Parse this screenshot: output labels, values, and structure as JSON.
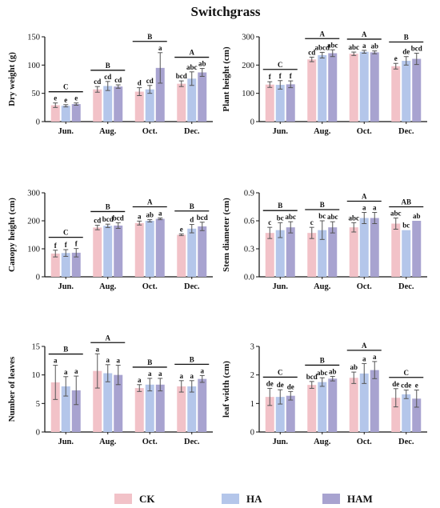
{
  "title": "Switchgrass",
  "legend": [
    {
      "name": "CK",
      "color": "#f2c2c8"
    },
    {
      "name": "HA",
      "color": "#b4c6ea"
    },
    {
      "name": "HAM",
      "color": "#a8a3d0"
    }
  ],
  "chart_data": [
    {
      "type": "bar",
      "ylabel": "Dry weight (g)",
      "categories": [
        "Jun.",
        "Aug.",
        "Oct.",
        "Dec."
      ],
      "ylim": [
        0,
        150
      ],
      "yticks": [
        0,
        50,
        100,
        150
      ],
      "series": [
        {
          "name": "CK",
          "values": [
            29,
            57,
            53,
            67
          ],
          "errors": [
            4,
            5,
            7,
            5
          ]
        },
        {
          "name": "HA",
          "values": [
            28,
            63,
            57,
            76
          ],
          "errors": [
            2,
            8,
            7,
            12
          ]
        },
        {
          "name": "HAM",
          "values": [
            31,
            62,
            95,
            87
          ],
          "errors": [
            2,
            3,
            27,
            7
          ]
        }
      ],
      "letters": [
        [
          "e",
          "e",
          "e"
        ],
        [
          "cd",
          "cd",
          "cd"
        ],
        [
          "d",
          "cd",
          "a"
        ],
        [
          "bcd",
          "abc",
          "ab"
        ]
      ],
      "group_letters": [
        "C",
        "B",
        "B",
        "A"
      ]
    },
    {
      "type": "bar",
      "ylabel": "Plant height (cm)",
      "categories": [
        "Jun.",
        "Aug.",
        "Oct.",
        "Dec."
      ],
      "ylim": [
        0,
        300
      ],
      "yticks": [
        0,
        100,
        200,
        300
      ],
      "series": [
        {
          "name": "CK",
          "values": [
            131,
            220,
            240,
            196
          ],
          "errors": [
            10,
            8,
            6,
            10
          ]
        },
        {
          "name": "HA",
          "values": [
            130,
            235,
            247,
            215
          ],
          "errors": [
            15,
            10,
            5,
            15
          ]
        },
        {
          "name": "HAM",
          "values": [
            132,
            242,
            245,
            222
          ],
          "errors": [
            12,
            12,
            5,
            20
          ]
        }
      ],
      "letters": [
        [
          "f",
          "f",
          "f"
        ],
        [
          "cd",
          "abcd",
          "abc"
        ],
        [
          "abc",
          "a",
          "ab"
        ],
        [
          "e",
          "de",
          "bcd"
        ]
      ],
      "group_letters": [
        "C",
        "A",
        "A",
        "B"
      ]
    },
    {
      "type": "bar",
      "ylabel": "Canopy height (cm)",
      "categories": [
        "Jun.",
        "Aug.",
        "Oct.",
        "Dec."
      ],
      "ylim": [
        0,
        300
      ],
      "yticks": [
        0,
        100,
        200,
        300
      ],
      "series": [
        {
          "name": "CK",
          "values": [
            83,
            176,
            192,
            150
          ],
          "errors": [
            12,
            8,
            7,
            3
          ]
        },
        {
          "name": "HA",
          "values": [
            85,
            182,
            200,
            172
          ],
          "errors": [
            12,
            6,
            4,
            15
          ]
        },
        {
          "name": "HAM",
          "values": [
            86,
            183,
            207,
            180
          ],
          "errors": [
            15,
            10,
            3,
            15
          ]
        }
      ],
      "letters": [
        [
          "f",
          "f",
          "f"
        ],
        [
          "cd",
          "bcd",
          "bcd"
        ],
        [
          "a",
          "ab",
          "a"
        ],
        [
          "e",
          "d",
          "bcd"
        ]
      ],
      "group_letters": [
        "C",
        "B",
        "A",
        "B"
      ]
    },
    {
      "type": "bar",
      "ylabel": "Stem diameter (cm)",
      "categories": [
        "Jun.",
        "Aug.",
        "Oct.",
        "Dec."
      ],
      "ylim": [
        0,
        0.9
      ],
      "yticks": [
        "0.0",
        "0.3",
        "0.6",
        "0.9"
      ],
      "series": [
        {
          "name": "CK",
          "values": [
            0.47,
            0.47,
            0.53,
            0.57
          ],
          "errors": [
            0.06,
            0.06,
            0.05,
            0.06
          ]
        },
        {
          "name": "HA",
          "values": [
            0.5,
            0.5,
            0.63,
            0.5
          ],
          "errors": [
            0.08,
            0.1,
            0.06,
            0.0
          ]
        },
        {
          "name": "HAM",
          "values": [
            0.53,
            0.53,
            0.63,
            0.6
          ],
          "errors": [
            0.06,
            0.06,
            0.06,
            0.0
          ]
        }
      ],
      "letters": [
        [
          "c",
          "bc",
          "abc"
        ],
        [
          "c",
          "bc",
          "abc"
        ],
        [
          "abc",
          "a",
          "a"
        ],
        [
          "abc",
          "bc",
          "ab"
        ]
      ],
      "group_letters": [
        "B",
        "B",
        "A",
        "AB"
      ]
    },
    {
      "type": "bar",
      "ylabel": "Number of leaves",
      "categories": [
        "Jun.",
        "Aug.",
        "Oct.",
        "Dec."
      ],
      "ylim": [
        0,
        15
      ],
      "yticks": [
        0,
        5,
        10,
        15
      ],
      "series": [
        {
          "name": "CK",
          "values": [
            8.7,
            10.7,
            7.7,
            8.0
          ],
          "errors": [
            3.0,
            3.0,
            0.6,
            1.0
          ]
        },
        {
          "name": "HA",
          "values": [
            8.0,
            10.3,
            8.3,
            8.0
          ],
          "errors": [
            1.7,
            1.5,
            1.1,
            1.0
          ]
        },
        {
          "name": "HAM",
          "values": [
            7.3,
            10.0,
            8.3,
            9.3
          ],
          "errors": [
            2.5,
            1.7,
            1.1,
            0.6
          ]
        }
      ],
      "letters": [
        [
          "a",
          "a",
          "a"
        ],
        [
          "a",
          "a",
          "a"
        ],
        [
          "a",
          "a",
          "a"
        ],
        [
          "a",
          "a",
          "a"
        ]
      ],
      "group_letters": [
        "B",
        "A",
        "B",
        "B"
      ]
    },
    {
      "type": "bar",
      "ylabel": "leaf width (cm)",
      "categories": [
        "Jun.",
        "Aug.",
        "Oct.",
        "Dec."
      ],
      "ylim": [
        0,
        3
      ],
      "yticks": [
        0,
        1,
        2,
        3
      ],
      "series": [
        {
          "name": "CK",
          "values": [
            1.23,
            1.65,
            1.9,
            1.2
          ],
          "errors": [
            0.3,
            0.12,
            0.2,
            0.32
          ]
        },
        {
          "name": "HA",
          "values": [
            1.23,
            1.75,
            2.05,
            1.32
          ],
          "errors": [
            0.25,
            0.15,
            0.35,
            0.15
          ]
        },
        {
          "name": "HAM",
          "values": [
            1.27,
            1.87,
            2.17,
            1.17
          ],
          "errors": [
            0.15,
            0.08,
            0.3,
            0.3
          ]
        }
      ],
      "letters": [
        [
          "de",
          "de",
          "de"
        ],
        [
          "bcd",
          "abc",
          "ab"
        ],
        [
          "ab",
          "a",
          "a"
        ],
        [
          "de",
          "cde",
          "e"
        ]
      ],
      "group_letters": [
        "C",
        "B",
        "A",
        "C"
      ]
    }
  ]
}
